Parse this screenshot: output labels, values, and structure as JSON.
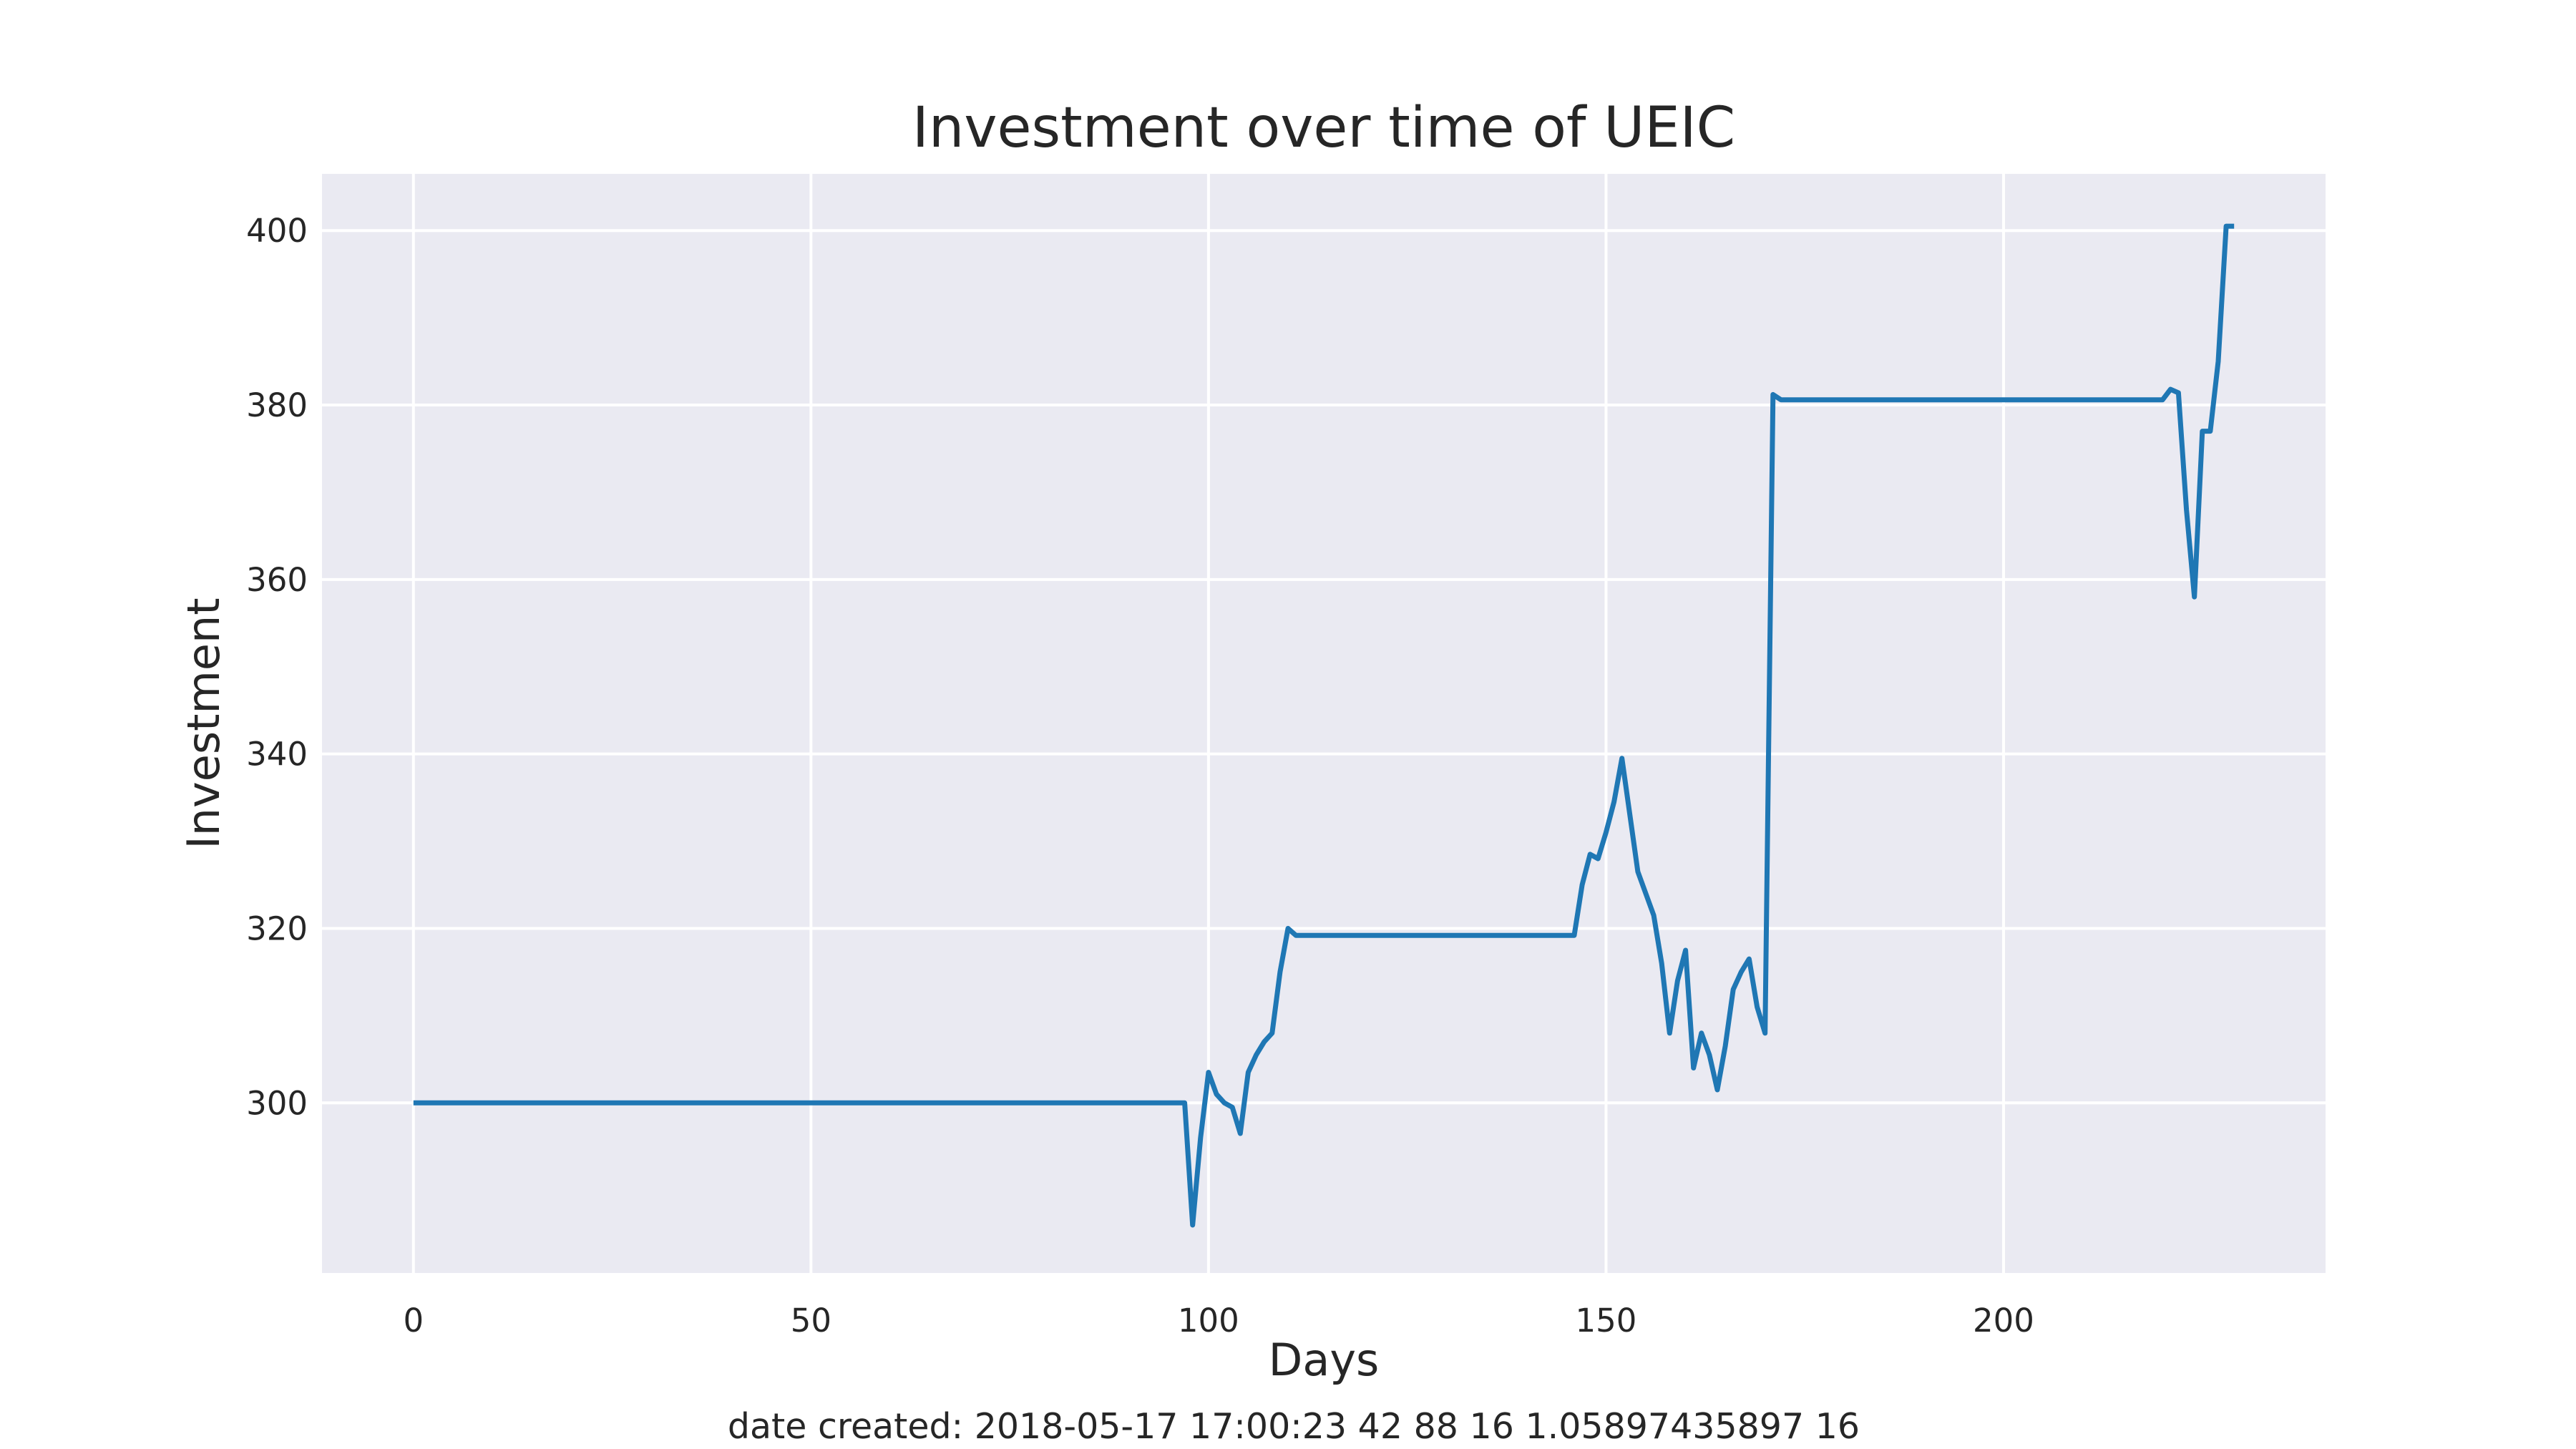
{
  "chart_data": {
    "type": "line",
    "title": "Investment over time of UEIC",
    "xlabel": "Days",
    "ylabel": "Investment",
    "footer": "date created: 2018-05-17 17:00:23 42 88 16 1.05897435897 16",
    "xlim": [
      -11.5,
      240.5
    ],
    "ylim": [
      280.5,
      406.5
    ],
    "xticks": [
      0,
      50,
      100,
      150,
      200
    ],
    "yticks": [
      300,
      320,
      340,
      360,
      380,
      400
    ],
    "grid": true,
    "background_color": "#eaeaf2",
    "line_color": "#1f77b4",
    "series": [
      {
        "points": [
          [
            0,
            300.0
          ],
          [
            97,
            300.0
          ],
          [
            98,
            286.0
          ],
          [
            99,
            296.0
          ],
          [
            100,
            303.5
          ],
          [
            101,
            301.0
          ],
          [
            102,
            300.0
          ],
          [
            103,
            299.5
          ],
          [
            104,
            296.5
          ],
          [
            105,
            303.5
          ],
          [
            106,
            305.5
          ],
          [
            107,
            307.0
          ],
          [
            108,
            308.0
          ],
          [
            109,
            315.0
          ],
          [
            110,
            320.0
          ],
          [
            111,
            319.2
          ],
          [
            146,
            319.2
          ],
          [
            147,
            325.0
          ],
          [
            148,
            328.5
          ],
          [
            149,
            328.0
          ],
          [
            150,
            331.0
          ],
          [
            151,
            334.5
          ],
          [
            152,
            339.5
          ],
          [
            153,
            333.0
          ],
          [
            154,
            326.5
          ],
          [
            155,
            324.0
          ],
          [
            156,
            321.5
          ],
          [
            157,
            316.0
          ],
          [
            158,
            308.0
          ],
          [
            159,
            314.0
          ],
          [
            160,
            317.5
          ],
          [
            161,
            304.0
          ],
          [
            162,
            308.0
          ],
          [
            163,
            305.5
          ],
          [
            164,
            301.5
          ],
          [
            165,
            306.5
          ],
          [
            166,
            313.0
          ],
          [
            167,
            315.0
          ],
          [
            168,
            316.5
          ],
          [
            169,
            311.0
          ],
          [
            170,
            308.0
          ],
          [
            171,
            381.2
          ],
          [
            172,
            380.6
          ],
          [
            220,
            380.6
          ],
          [
            221,
            381.8
          ],
          [
            222,
            381.4
          ],
          [
            223,
            368.0
          ],
          [
            224,
            358.0
          ],
          [
            225,
            377.0
          ],
          [
            226,
            377.0
          ],
          [
            227,
            385.0
          ],
          [
            228,
            400.5
          ],
          [
            229,
            400.5
          ]
        ]
      }
    ]
  }
}
